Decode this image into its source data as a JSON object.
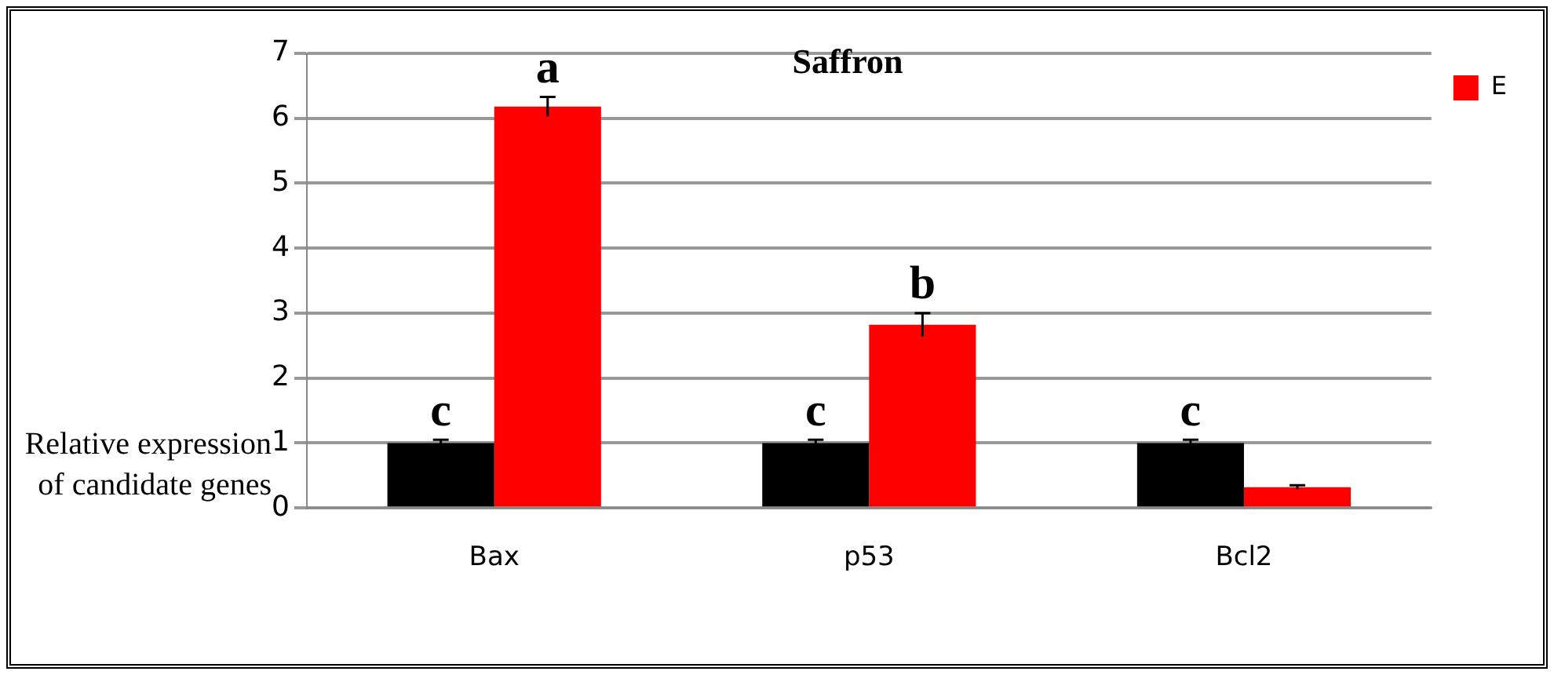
{
  "chart_data": {
    "type": "bar",
    "title": "Saffron",
    "ylabel": "Relative expression of candidate genes",
    "categories": [
      "Bax",
      "p53",
      "Bcl2"
    ],
    "series": [
      {
        "color": "#000000",
        "values": [
          1,
          1,
          1
        ],
        "errors": [
          0.05,
          0.05,
          0.05
        ]
      },
      {
        "name": "E",
        "color": "#ff0000",
        "values": [
          6.18,
          2.82,
          0.32
        ],
        "errors": [
          0.15,
          0.18,
          0.03
        ]
      }
    ],
    "ylim": [
      0,
      7
    ],
    "yticks": [
      0,
      1,
      2,
      3,
      4,
      5,
      6,
      7
    ],
    "grid": "y",
    "legend": "right",
    "annotations": [
      {
        "text": "c",
        "x": "Bax",
        "y": 1
      },
      {
        "text": "a",
        "x": "Bax",
        "y": 6.18
      },
      {
        "text": "c",
        "x": "p53",
        "y": 1
      },
      {
        "text": "b",
        "x": "p53",
        "y": 2.82
      },
      {
        "text": "c",
        "x": "Bcl2",
        "y": 1
      }
    ]
  }
}
